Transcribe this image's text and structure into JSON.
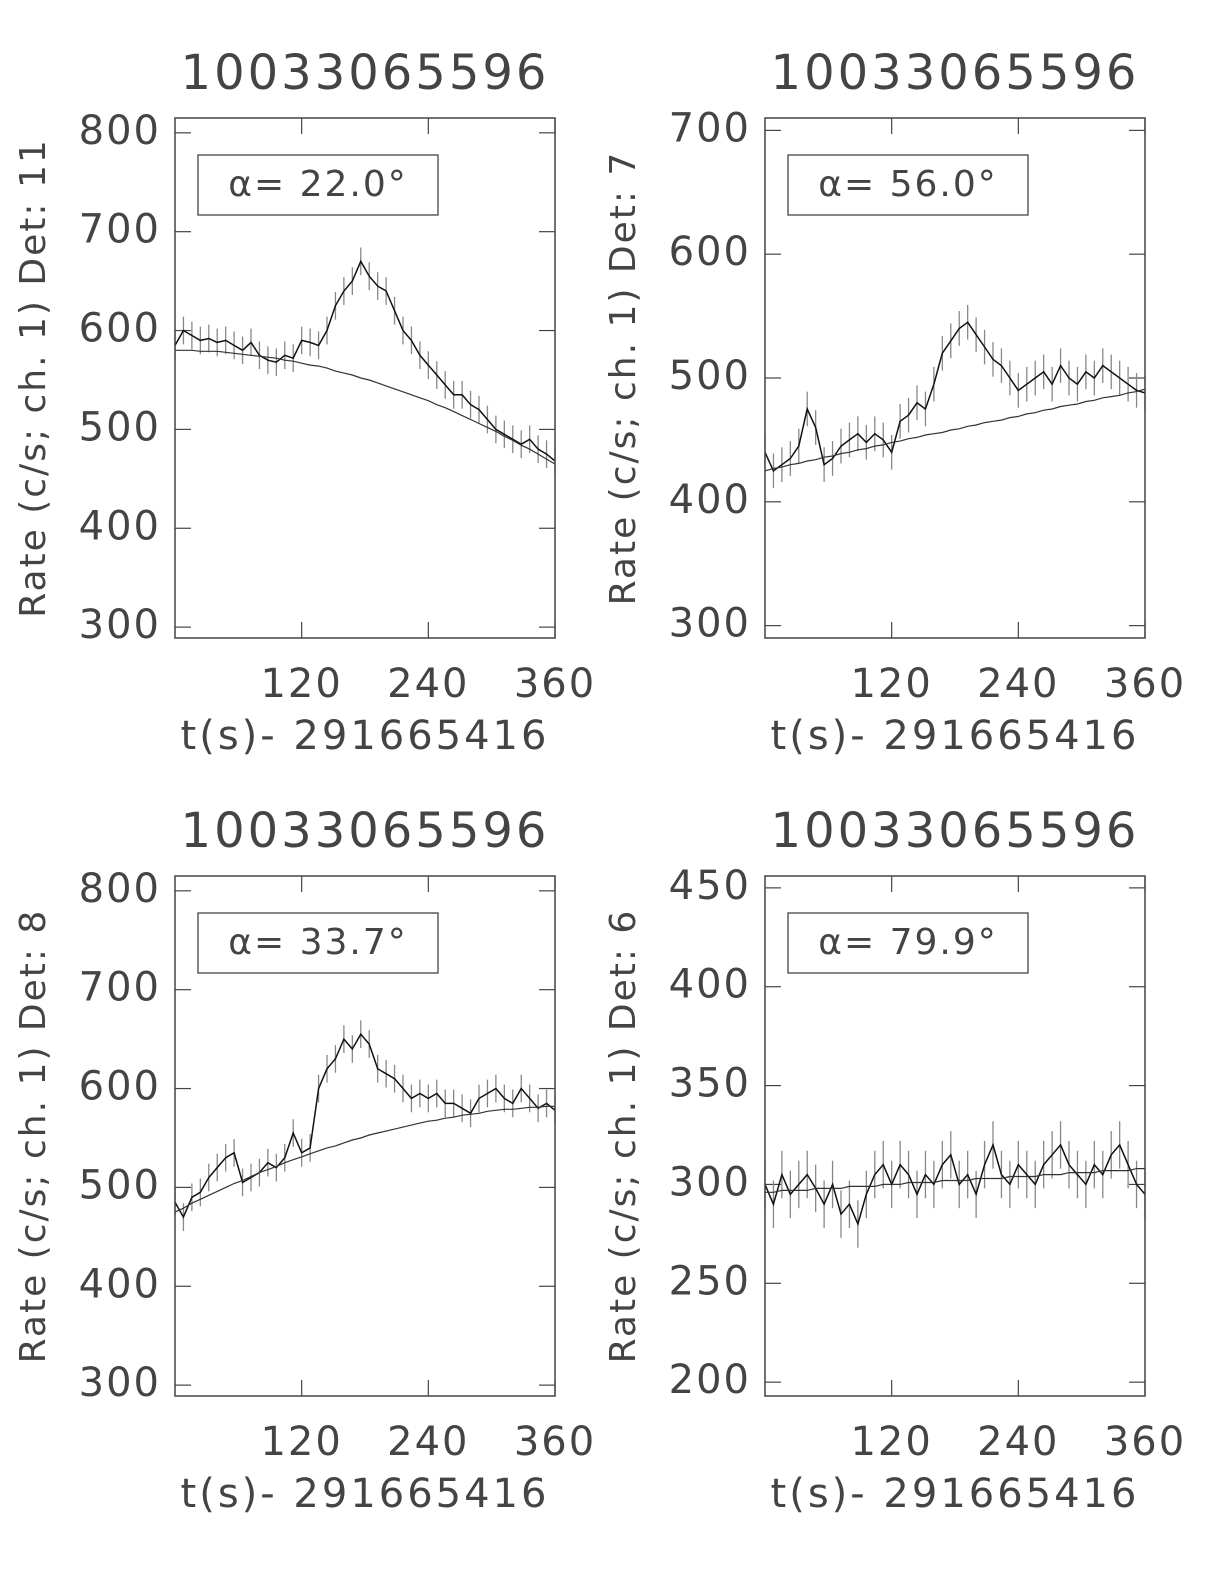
{
  "chart_data": [
    {
      "type": "line",
      "title": "10033065596",
      "xlabel": "t(s)- 291665416",
      "ylabel": "Rate (c/s; ch. 1) Det: 11",
      "annotation": "α= 22.0°",
      "x": [
        0,
        8,
        16,
        24,
        32,
        40,
        48,
        56,
        64,
        72,
        80,
        88,
        96,
        104,
        112,
        120,
        128,
        136,
        144,
        152,
        160,
        168,
        176,
        184,
        192,
        200,
        208,
        216,
        224,
        232,
        240,
        248,
        256,
        264,
        272,
        280,
        288,
        296,
        304,
        312,
        320,
        328,
        336,
        344,
        352,
        360
      ],
      "series": [
        {
          "color": "#111111",
          "error_color": "#888888",
          "error": 14,
          "values": [
            585,
            600,
            595,
            590,
            592,
            588,
            590,
            585,
            580,
            588,
            575,
            570,
            568,
            575,
            572,
            590,
            588,
            585,
            600,
            625,
            640,
            650,
            670,
            655,
            645,
            640,
            620,
            600,
            590,
            575,
            565,
            555,
            545,
            535,
            535,
            525,
            520,
            510,
            500,
            495,
            490,
            485,
            490,
            480,
            475,
            468
          ]
        },
        {
          "color": "#333333",
          "values": [
            580,
            580,
            580,
            579,
            579,
            579,
            578,
            577,
            576,
            575,
            574,
            573,
            572,
            570,
            569,
            567,
            565,
            564,
            562,
            559,
            557,
            555,
            552,
            550,
            547,
            544,
            541,
            538,
            535,
            532,
            529,
            525,
            522,
            518,
            514,
            510,
            506,
            502,
            498,
            493,
            489,
            484,
            480,
            475,
            470,
            465
          ]
        }
      ],
      "xlim": [
        0,
        360
      ],
      "ylim": [
        289,
        815
      ],
      "xticks": [
        120,
        240,
        360
      ],
      "yticks": [
        300,
        400,
        500,
        600,
        700,
        800
      ]
    },
    {
      "type": "line",
      "title": "10033065596",
      "xlabel": "t(s)- 291665416",
      "ylabel": "Rate (c/s; ch. 1) Det: 7",
      "annotation": "α= 56.0°",
      "x": [
        0,
        8,
        16,
        24,
        32,
        40,
        48,
        56,
        64,
        72,
        80,
        88,
        96,
        104,
        112,
        120,
        128,
        136,
        144,
        152,
        160,
        168,
        176,
        184,
        192,
        200,
        208,
        216,
        224,
        232,
        240,
        248,
        256,
        264,
        272,
        280,
        288,
        296,
        304,
        312,
        320,
        328,
        336,
        344,
        352,
        360
      ],
      "series": [
        {
          "color": "#111111",
          "error_color": "#888888",
          "error": 14,
          "values": [
            440,
            425,
            430,
            435,
            445,
            475,
            460,
            430,
            435,
            445,
            450,
            455,
            448,
            455,
            450,
            440,
            465,
            470,
            480,
            475,
            495,
            520,
            530,
            540,
            545,
            535,
            525,
            515,
            510,
            500,
            490,
            495,
            500,
            505,
            495,
            510,
            500,
            495,
            505,
            500,
            510,
            505,
            500,
            495,
            490,
            488
          ]
        },
        {
          "color": "#333333",
          "values": [
            425,
            427,
            428,
            430,
            431,
            433,
            434,
            436,
            437,
            439,
            440,
            442,
            443,
            445,
            446,
            448,
            449,
            451,
            452,
            454,
            455,
            456,
            458,
            459,
            461,
            462,
            464,
            465,
            466,
            468,
            469,
            471,
            472,
            474,
            475,
            477,
            478,
            479,
            481,
            482,
            484,
            485,
            486,
            488,
            489,
            491
          ]
        }
      ],
      "xlim": [
        0,
        360
      ],
      "ylim": [
        290,
        710
      ],
      "xticks": [
        120,
        240,
        360
      ],
      "yticks": [
        300,
        400,
        500,
        600,
        700
      ]
    },
    {
      "type": "line",
      "title": "10033065596",
      "xlabel": "t(s)- 291665416",
      "ylabel": "Rate (c/s; ch. 1) Det: 8",
      "annotation": "α= 33.7°",
      "x": [
        0,
        8,
        16,
        24,
        32,
        40,
        48,
        56,
        64,
        72,
        80,
        88,
        96,
        104,
        112,
        120,
        128,
        136,
        144,
        152,
        160,
        168,
        176,
        184,
        192,
        200,
        208,
        216,
        224,
        232,
        240,
        248,
        256,
        264,
        272,
        280,
        288,
        296,
        304,
        312,
        320,
        328,
        336,
        344,
        352,
        360
      ],
      "series": [
        {
          "color": "#111111",
          "error_color": "#888888",
          "error": 14,
          "values": [
            485,
            470,
            490,
            495,
            510,
            520,
            530,
            535,
            505,
            510,
            515,
            525,
            520,
            530,
            555,
            535,
            540,
            600,
            620,
            630,
            650,
            640,
            655,
            645,
            620,
            615,
            610,
            600,
            590,
            595,
            590,
            595,
            585,
            585,
            580,
            575,
            590,
            595,
            600,
            590,
            585,
            600,
            590,
            580,
            585,
            578
          ]
        },
        {
          "color": "#333333",
          "values": [
            475,
            479,
            484,
            488,
            492,
            496,
            500,
            504,
            507,
            511,
            515,
            518,
            521,
            525,
            528,
            531,
            534,
            537,
            540,
            542,
            545,
            548,
            550,
            553,
            555,
            557,
            559,
            561,
            563,
            565,
            567,
            568,
            570,
            571,
            573,
            574,
            575,
            577,
            578,
            579,
            579,
            580,
            581,
            581,
            582,
            582
          ]
        }
      ],
      "xlim": [
        0,
        360
      ],
      "ylim": [
        289,
        815
      ],
      "xticks": [
        120,
        240,
        360
      ],
      "yticks": [
        300,
        400,
        500,
        600,
        700,
        800
      ]
    },
    {
      "type": "line",
      "title": "10033065596",
      "xlabel": "t(s)- 291665416",
      "ylabel": "Rate (c/s; ch. 1) Det: 6",
      "annotation": "α= 79.9°",
      "x": [
        0,
        8,
        16,
        24,
        32,
        40,
        48,
        56,
        64,
        72,
        80,
        88,
        96,
        104,
        112,
        120,
        128,
        136,
        144,
        152,
        160,
        168,
        176,
        184,
        192,
        200,
        208,
        216,
        224,
        232,
        240,
        248,
        256,
        264,
        272,
        280,
        288,
        296,
        304,
        312,
        320,
        328,
        336,
        344,
        352,
        360
      ],
      "series": [
        {
          "color": "#111111",
          "error_color": "#888888",
          "error": 12,
          "values": [
            300,
            290,
            305,
            295,
            300,
            305,
            298,
            290,
            300,
            285,
            290,
            280,
            295,
            305,
            310,
            300,
            310,
            305,
            295,
            305,
            300,
            310,
            315,
            300,
            305,
            295,
            310,
            320,
            305,
            300,
            310,
            305,
            300,
            310,
            315,
            320,
            310,
            305,
            300,
            310,
            305,
            315,
            320,
            310,
            300,
            295
          ]
        },
        {
          "color": "#333333",
          "values": [
            296,
            296,
            297,
            297,
            297,
            297,
            298,
            298,
            298,
            298,
            299,
            299,
            299,
            299,
            300,
            300,
            300,
            301,
            301,
            301,
            301,
            302,
            302,
            302,
            302,
            303,
            303,
            303,
            303,
            304,
            304,
            304,
            304,
            305,
            305,
            305,
            306,
            306,
            306,
            306,
            307,
            307,
            307,
            307,
            308,
            308
          ]
        }
      ],
      "xlim": [
        0,
        360
      ],
      "ylim": [
        193,
        456
      ],
      "xticks": [
        120,
        240,
        360
      ],
      "yticks": [
        200,
        250,
        300,
        350,
        400,
        450
      ]
    }
  ]
}
